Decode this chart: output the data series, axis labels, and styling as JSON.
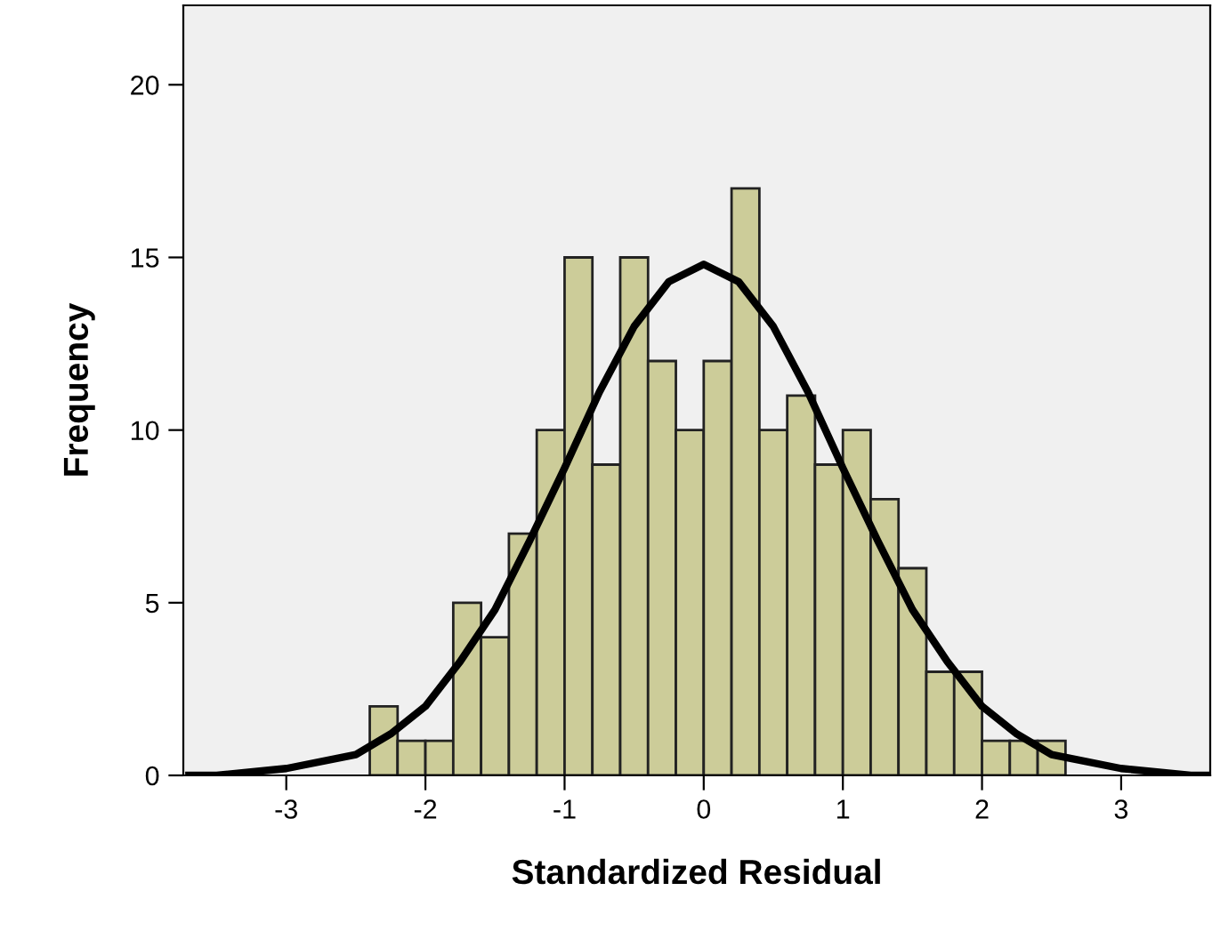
{
  "chart_data": {
    "type": "histogram",
    "xlabel": "Standardized Residual",
    "ylabel": "Frequency",
    "bins": [
      -2.4,
      -2.2,
      -2.0,
      -1.8,
      -1.6,
      -1.4,
      -1.2,
      -1.0,
      -0.8,
      -0.6,
      -0.4,
      -0.2,
      0.0,
      0.2,
      0.4,
      0.6,
      0.8,
      1.0,
      1.2,
      1.4,
      1.6,
      1.8,
      2.0,
      2.2,
      2.4,
      2.6
    ],
    "values": [
      2,
      1,
      1,
      5,
      4,
      7,
      10,
      15,
      9,
      15,
      12,
      10,
      12,
      17,
      10,
      11,
      9,
      10,
      8,
      6,
      3,
      3,
      1,
      1,
      1
    ],
    "color": "#cccc99",
    "series": [
      {
        "type": "line",
        "color": "#000000",
        "x": [
          -3.7,
          -3.5,
          -3.0,
          -2.5,
          -2.25,
          -2.0,
          -1.75,
          -1.5,
          -1.25,
          -1.0,
          -0.75,
          -0.5,
          -0.25,
          0.0,
          0.25,
          0.5,
          0.75,
          1.0,
          1.25,
          1.5,
          1.75,
          2.0,
          2.25,
          2.5,
          3.0,
          3.5,
          3.64
        ],
        "values": [
          0,
          0,
          0.2,
          0.6,
          1.2,
          2.0,
          3.3,
          4.8,
          6.8,
          8.9,
          11.1,
          13.0,
          14.3,
          14.8,
          14.3,
          13.0,
          11.1,
          8.9,
          6.8,
          4.8,
          3.3,
          2.0,
          1.2,
          0.6,
          0.2,
          0,
          0
        ]
      }
    ],
    "xlim": [
      -3.74,
      3.64
    ],
    "xticks": [
      -3,
      -2,
      -1,
      0,
      1,
      2,
      3
    ],
    "ylim": [
      0,
      22.3
    ],
    "yticks": [
      0,
      5,
      10,
      15,
      20
    ],
    "grid": false,
    "legend": false
  }
}
